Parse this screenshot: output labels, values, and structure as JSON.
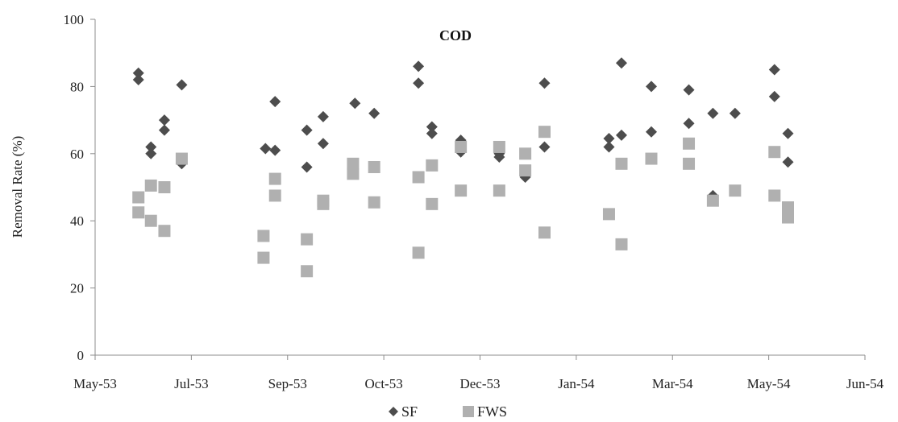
{
  "chart_data": {
    "type": "scatter",
    "title": "COD",
    "ylabel": "Removal Rate (%)",
    "xlabel": "",
    "ylim": [
      0,
      100
    ],
    "yticks": [
      0,
      20,
      40,
      60,
      80,
      100
    ],
    "xlim": [
      0,
      12
    ],
    "xticks": [
      {
        "x": 0,
        "label": "May-53"
      },
      {
        "x": 1,
        "label": "Jul-53"
      },
      {
        "x": 2,
        "label": "Sep-53"
      },
      {
        "x": 3,
        "label": "Oct-53"
      },
      {
        "x": 4,
        "label": "Dec-53"
      },
      {
        "x": 5,
        "label": "Jan-54"
      },
      {
        "x": 6,
        "label": "Mar-54"
      },
      {
        "x": 7,
        "label": "May-54"
      },
      {
        "x": 8,
        "label": "Jun-54"
      }
    ],
    "grid": false,
    "legend_position": "bottom",
    "series": [
      {
        "name": "SF",
        "marker": "diamond",
        "color": "#4d4d4d",
        "points": [
          [
            0.45,
            84
          ],
          [
            0.45,
            82
          ],
          [
            0.58,
            62
          ],
          [
            0.58,
            60
          ],
          [
            0.72,
            70
          ],
          [
            0.72,
            67
          ],
          [
            0.9,
            57
          ],
          [
            0.9,
            80.5
          ],
          [
            1.77,
            61.5
          ],
          [
            1.87,
            61
          ],
          [
            1.87,
            75.5
          ],
          [
            2.2,
            56
          ],
          [
            2.2,
            67
          ],
          [
            2.37,
            71
          ],
          [
            2.37,
            63
          ],
          [
            2.7,
            75
          ],
          [
            2.9,
            72
          ],
          [
            3.36,
            86
          ],
          [
            3.36,
            81
          ],
          [
            3.5,
            68
          ],
          [
            3.5,
            66
          ],
          [
            3.8,
            64
          ],
          [
            3.8,
            60.5
          ],
          [
            4.2,
            59
          ],
          [
            4.2,
            60
          ],
          [
            4.47,
            53
          ],
          [
            4.47,
            55
          ],
          [
            4.67,
            81
          ],
          [
            4.67,
            62
          ],
          [
            5.34,
            64.5
          ],
          [
            5.34,
            62
          ],
          [
            5.47,
            65.5
          ],
          [
            5.47,
            87
          ],
          [
            5.78,
            80
          ],
          [
            5.78,
            66.5
          ],
          [
            6.17,
            79
          ],
          [
            6.17,
            69
          ],
          [
            6.42,
            72
          ],
          [
            6.42,
            47.5
          ],
          [
            6.65,
            72
          ],
          [
            7.06,
            85
          ],
          [
            7.06,
            77
          ],
          [
            7.2,
            66
          ],
          [
            7.2,
            57.5
          ]
        ]
      },
      {
        "name": "FWS",
        "marker": "square",
        "color": "#b0b0b0",
        "points": [
          [
            0.45,
            47
          ],
          [
            0.45,
            42.5
          ],
          [
            0.58,
            50.5
          ],
          [
            0.58,
            40
          ],
          [
            0.72,
            50
          ],
          [
            0.72,
            37
          ],
          [
            0.9,
            58.5
          ],
          [
            1.75,
            35.5
          ],
          [
            1.75,
            29
          ],
          [
            1.87,
            52.5
          ],
          [
            1.87,
            47.5
          ],
          [
            2.2,
            34.5
          ],
          [
            2.2,
            25
          ],
          [
            2.37,
            46
          ],
          [
            2.37,
            45
          ],
          [
            2.68,
            57
          ],
          [
            2.68,
            54
          ],
          [
            2.9,
            56
          ],
          [
            2.9,
            45.5
          ],
          [
            3.36,
            53
          ],
          [
            3.36,
            30.5
          ],
          [
            3.5,
            56.5
          ],
          [
            3.5,
            45
          ],
          [
            3.8,
            62
          ],
          [
            3.8,
            49
          ],
          [
            4.2,
            62
          ],
          [
            4.2,
            49
          ],
          [
            4.47,
            60
          ],
          [
            4.47,
            55
          ],
          [
            4.67,
            66.5
          ],
          [
            4.67,
            36.5
          ],
          [
            5.34,
            42
          ],
          [
            5.47,
            57
          ],
          [
            5.47,
            33
          ],
          [
            5.78,
            58.5
          ],
          [
            6.17,
            63
          ],
          [
            6.17,
            57
          ],
          [
            6.42,
            46
          ],
          [
            6.65,
            49
          ],
          [
            7.06,
            60.5
          ],
          [
            7.06,
            47.5
          ],
          [
            7.2,
            44
          ],
          [
            7.2,
            41
          ]
        ]
      }
    ]
  }
}
